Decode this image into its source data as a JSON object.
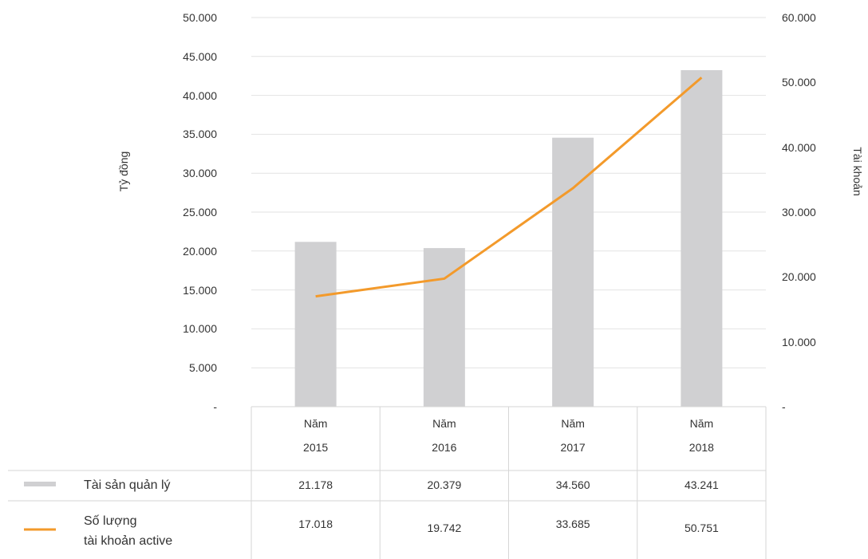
{
  "chart_data": {
    "type": "bar-line",
    "categories": [
      "Năm\n2015",
      "Năm\n2016",
      "Năm\n2017",
      "Năm\n2018"
    ],
    "ylabel": "Tỷ đồng",
    "y2label": "Tài khoản",
    "series": [
      {
        "name": "Tài sản quản lý",
        "type": "bar",
        "color": "#d0d0d2",
        "values": [
          21178,
          20379,
          34560,
          43241
        ],
        "value_labels": [
          "21.178",
          "20.379",
          "34.560",
          "43.241"
        ]
      },
      {
        "name": "Số lượng\ntài khoản active",
        "type": "line",
        "axis": "y2",
        "color": "#f39a2b",
        "values": [
          17018,
          19742,
          33685,
          50751
        ],
        "value_labels": [
          "17.018",
          "19.742",
          "33.685",
          "50.751"
        ]
      }
    ],
    "ylim": [
      0,
      50000
    ],
    "yticks": [
      {
        "value": 0,
        "label": "-"
      },
      {
        "value": 5000,
        "label": "5.000"
      },
      {
        "value": 10000,
        "label": "10.000"
      },
      {
        "value": 15000,
        "label": "15.000"
      },
      {
        "value": 20000,
        "label": "20.000"
      },
      {
        "value": 25000,
        "label": "25.000"
      },
      {
        "value": 30000,
        "label": "30.000"
      },
      {
        "value": 35000,
        "label": "35.000"
      },
      {
        "value": 40000,
        "label": "40.000"
      },
      {
        "value": 45000,
        "label": "45.000"
      },
      {
        "value": 50000,
        "label": "50.000"
      }
    ],
    "y2lim": [
      0,
      60000
    ],
    "y2ticks": [
      {
        "value": 0,
        "label": "-"
      },
      {
        "value": 10000,
        "label": "10.000"
      },
      {
        "value": 20000,
        "label": "20.000"
      },
      {
        "value": 30000,
        "label": "30.000"
      },
      {
        "value": 40000,
        "label": "40.000"
      },
      {
        "value": 50000,
        "label": "50.000"
      },
      {
        "value": 60000,
        "label": "60.000"
      }
    ],
    "grid": true
  }
}
